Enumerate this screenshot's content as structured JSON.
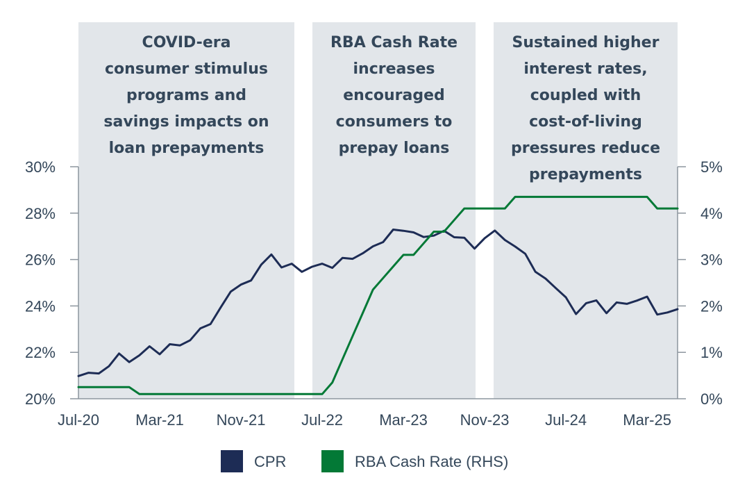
{
  "chart_data": {
    "type": "line",
    "x_ticks": [
      "Jul-20",
      "Mar-21",
      "Nov-21",
      "Jul-22",
      "Mar-23",
      "Nov-23",
      "Jul-24",
      "Mar-25"
    ],
    "y_left": {
      "ticks": [
        "20%",
        "22%",
        "24%",
        "26%",
        "28%",
        "30%"
      ],
      "min": 20,
      "max": 30
    },
    "y_right": {
      "ticks": [
        "0%",
        "1%",
        "2%",
        "3%",
        "4%",
        "5%"
      ],
      "min": 0,
      "max": 5
    },
    "annotations": [
      {
        "from": "Jul-20",
        "to": "Feb-22",
        "lines": [
          "COVID-era",
          "consumer stimulus",
          "programs and",
          "savings impacts on",
          "loan prepayments"
        ]
      },
      {
        "from": "Apr-22",
        "to": "Sep-23",
        "lines": [
          "RBA Cash Rate",
          "increases",
          "encouraged",
          "consumers to",
          "prepay loans"
        ]
      },
      {
        "from": "Nov-23",
        "to": "Mar-25",
        "lines": [
          "Sustained higher",
          "interest rates,",
          "coupled with",
          "cost-of-living",
          "pressures reduce",
          "prepayments"
        ]
      }
    ],
    "series": [
      {
        "name": "CPR",
        "axis": "left",
        "color": "#1d2c55",
        "values": [
          20.98,
          21.12,
          21.09,
          21.4,
          21.95,
          21.58,
          21.87,
          22.26,
          21.92,
          22.35,
          22.3,
          22.52,
          23.03,
          23.22,
          23.93,
          24.62,
          24.92,
          25.1,
          25.78,
          26.22,
          25.66,
          25.82,
          25.47,
          25.69,
          25.82,
          25.64,
          26.07,
          26.03,
          26.27,
          26.57,
          26.75,
          27.29,
          27.24,
          27.17,
          26.97,
          27.03,
          27.24,
          26.96,
          26.94,
          26.47,
          26.92,
          27.25,
          26.84,
          26.56,
          26.25,
          25.47,
          25.18,
          24.77,
          24.37,
          23.65,
          24.12,
          24.24,
          23.69,
          24.15,
          24.09,
          24.23,
          24.4,
          23.63,
          23.72,
          23.86
        ]
      },
      {
        "name": "RBA Cash Rate (RHS)",
        "axis": "right",
        "color": "#037936",
        "values": [
          0.25,
          0.25,
          0.25,
          0.25,
          0.25,
          0.25,
          0.1,
          0.1,
          0.1,
          0.1,
          0.1,
          0.1,
          0.1,
          0.1,
          0.1,
          0.1,
          0.1,
          0.1,
          0.1,
          0.1,
          0.1,
          0.1,
          0.1,
          0.1,
          0.1,
          0.35,
          0.85,
          1.35,
          1.85,
          2.35,
          2.6,
          2.85,
          3.1,
          3.1,
          3.35,
          3.6,
          3.6,
          3.85,
          4.1,
          4.1,
          4.1,
          4.1,
          4.1,
          4.35,
          4.35,
          4.35,
          4.35,
          4.35,
          4.35,
          4.35,
          4.35,
          4.35,
          4.35,
          4.35,
          4.35,
          4.35,
          4.35,
          4.1,
          4.1,
          4.1
        ]
      }
    ],
    "legend": "bottom-center",
    "grid": false
  }
}
